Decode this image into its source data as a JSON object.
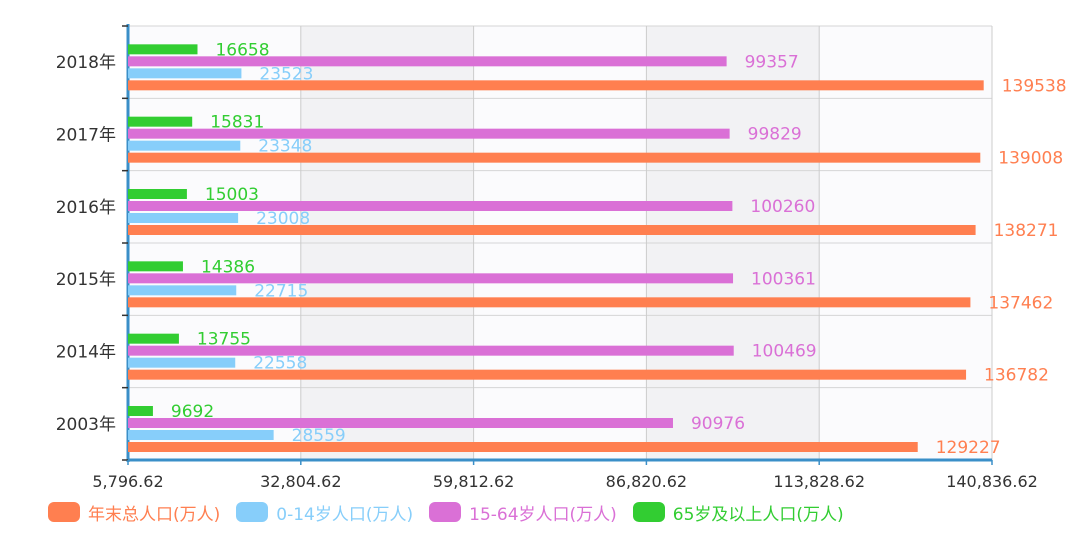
{
  "chart_data": {
    "type": "bar",
    "orientation": "horizontal",
    "categories": [
      "2018年",
      "2017年",
      "2016年",
      "2015年",
      "2014年",
      "2003年"
    ],
    "series": [
      {
        "name": "年末总人口(万人)",
        "color": "#ff7f50",
        "values": [
          139538,
          139008,
          138271,
          137462,
          136782,
          129227
        ]
      },
      {
        "name": "0-14岁人口(万人)",
        "color": "#87cefa",
        "values": [
          23523,
          23348,
          23008,
          22715,
          22558,
          28559
        ]
      },
      {
        "name": "15-64岁人口(万人)",
        "color": "#da70d6",
        "values": [
          99357,
          99829,
          100260,
          100361,
          100469,
          90976
        ]
      },
      {
        "name": "65岁及以上人口(万人)",
        "color": "#32cd32",
        "values": [
          16658,
          15831,
          15003,
          14386,
          13755,
          9692
        ]
      }
    ],
    "xlim": [
      5796.62,
      140836.62
    ],
    "x_ticks": [
      "5,796.62",
      "32,804.62",
      "59,812.62",
      "86,820.62",
      "113,828.62",
      "140,836.62"
    ],
    "grid": true,
    "legend_position": "bottom-left",
    "title": "",
    "xlabel": "",
    "ylabel": ""
  }
}
